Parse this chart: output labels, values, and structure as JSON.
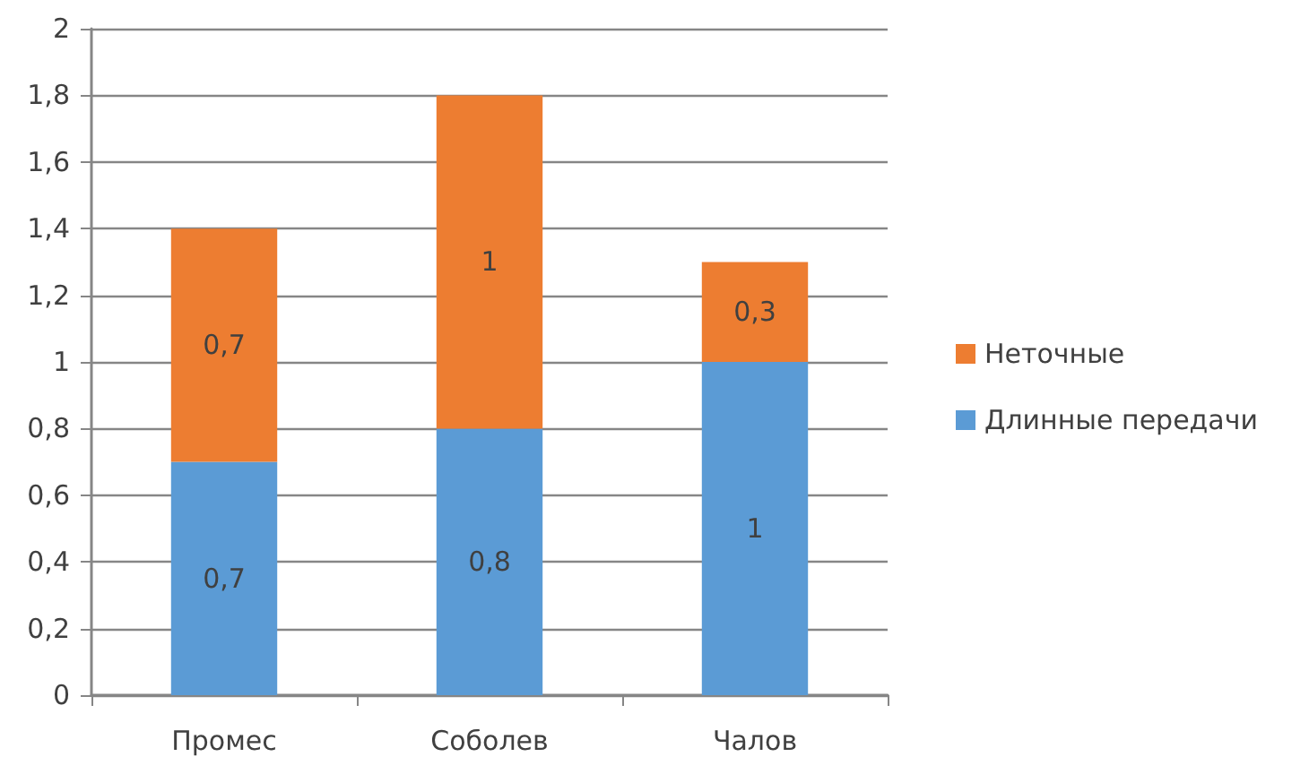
{
  "chart_data": {
    "type": "bar",
    "stacked": true,
    "categories": [
      "Промес",
      "Соболев",
      "Чалов"
    ],
    "series": [
      {
        "name": "Длинные передачи",
        "color": "#5b9bd5",
        "values": [
          0.7,
          0.8,
          1
        ],
        "value_labels": [
          "0,7",
          "0,8",
          "1"
        ]
      },
      {
        "name": "Неточные",
        "color": "#ed7d31",
        "values": [
          0.7,
          1,
          0.3
        ],
        "value_labels": [
          "0,7",
          "1",
          "0,3"
        ]
      }
    ],
    "ylim": [
      0,
      2
    ],
    "yticks": [
      0,
      {
        "value": 0.2,
        "label": "0,2"
      },
      {
        "value": 0.4,
        "label": "0,4"
      },
      {
        "value": 0.6,
        "label": "0,6"
      },
      {
        "value": 0.8,
        "label": "0,8"
      },
      1,
      {
        "value": 1.2,
        "label": "1,2"
      },
      {
        "value": 1.4,
        "label": "1,4"
      },
      {
        "value": 1.6,
        "label": "1,6"
      },
      {
        "value": 1.8,
        "label": "1,8"
      },
      2
    ],
    "grid": "y",
    "legend": "right"
  }
}
